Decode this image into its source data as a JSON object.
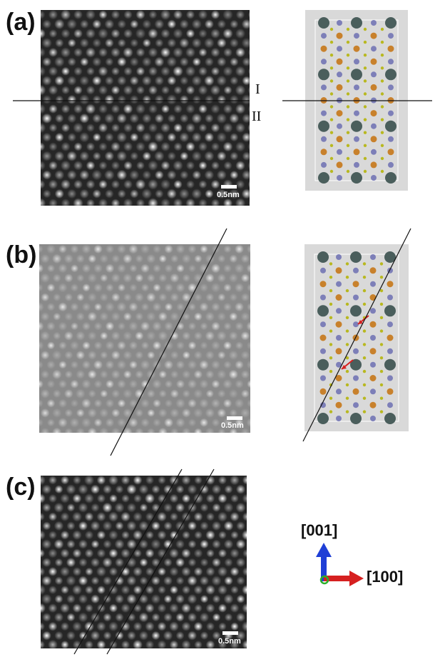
{
  "panels": [
    {
      "label": "(a)",
      "scale_label": "0.5nm"
    },
    {
      "label": "(b)",
      "scale_label": "0.5nm"
    },
    {
      "label": "(c)",
      "scale_label": "0.5nm"
    }
  ],
  "regions": {
    "upper": "I",
    "lower": "II"
  },
  "axes": {
    "vertical": "[001]",
    "horizontal": "[100]"
  },
  "colors": {
    "large_atom": "#4a5e5c",
    "orange_atom": "#c8812c",
    "purple_atom": "#7d7fb8",
    "small_atom": "#b8b820",
    "model_bg": "#d9d9d9",
    "axis_up": "#1f3fd6",
    "axis_right": "#d62020",
    "axis_origin": "#2bb02b"
  }
}
